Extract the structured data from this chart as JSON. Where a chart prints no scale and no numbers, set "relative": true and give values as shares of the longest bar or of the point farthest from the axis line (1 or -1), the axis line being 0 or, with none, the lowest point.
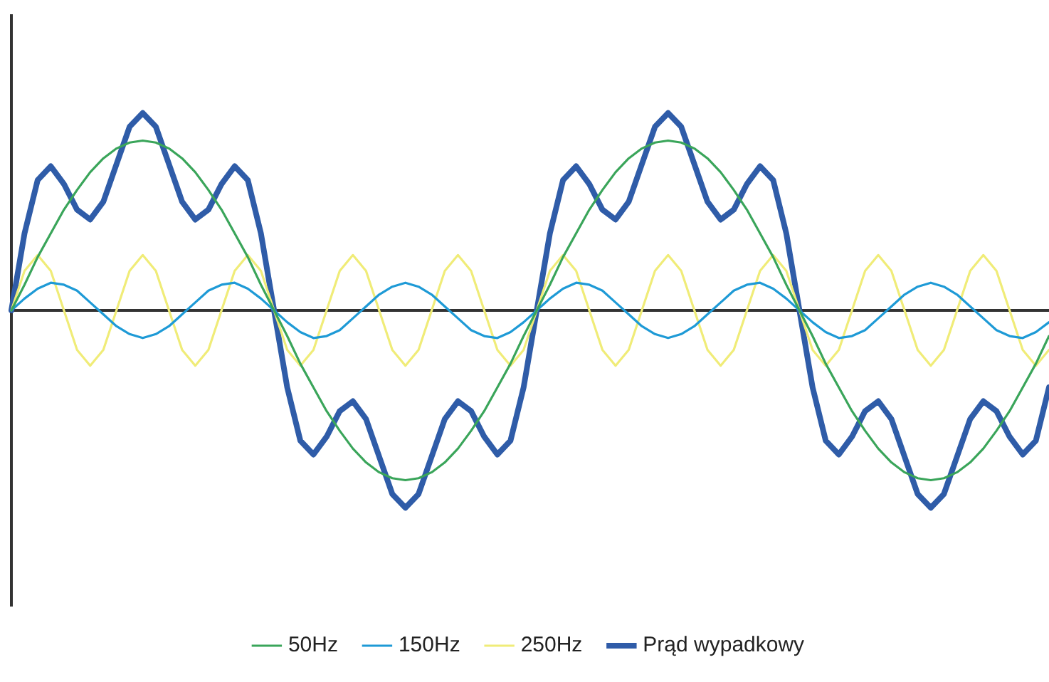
{
  "chart_data": {
    "type": "line",
    "relative": true,
    "legend": "bottom",
    "marker": "none",
    "line_style": "solid",
    "categories": [
      null,
      null,
      null,
      null,
      null,
      null,
      null,
      null,
      null,
      null,
      null,
      null,
      null,
      null,
      null,
      null,
      null,
      null,
      null,
      null,
      null,
      null,
      null,
      null,
      null,
      null,
      null,
      null,
      null,
      null,
      null,
      null,
      null,
      null,
      null,
      null,
      null,
      null,
      null,
      null,
      null,
      null,
      null,
      null,
      null,
      null,
      null,
      null,
      null,
      null,
      null,
      null,
      null,
      null,
      null,
      null,
      null,
      null,
      null,
      null,
      null,
      null,
      null,
      null,
      null,
      null,
      null,
      null,
      null,
      null,
      null,
      null,
      null,
      null,
      null,
      null,
      null,
      null,
      null,
      null
    ],
    "series": [
      {
        "name": "50Hz",
        "color": "#3aa55a",
        "values": [
          0,
          0.13,
          0.27,
          0.39,
          0.51,
          0.61,
          0.7,
          0.77,
          0.82,
          0.85,
          0.86,
          0.85,
          0.82,
          0.77,
          0.7,
          0.61,
          0.51,
          0.39,
          0.27,
          0.13,
          0,
          -0.13,
          -0.27,
          -0.39,
          -0.51,
          -0.61,
          -0.7,
          -0.77,
          -0.82,
          -0.85,
          -0.86,
          -0.85,
          -0.82,
          -0.77,
          -0.7,
          -0.61,
          -0.51,
          -0.39,
          -0.27,
          -0.13,
          0,
          0.13,
          0.27,
          0.39,
          0.51,
          0.61,
          0.7,
          0.77,
          0.82,
          0.85,
          0.86,
          0.85,
          0.82,
          0.77,
          0.7,
          0.61,
          0.51,
          0.39,
          0.27,
          0.13,
          0,
          -0.13,
          -0.27,
          -0.39,
          -0.51,
          -0.61,
          -0.7,
          -0.77,
          -0.82,
          -0.85,
          -0.86,
          -0.85,
          -0.82,
          -0.77,
          -0.7,
          -0.61,
          -0.51,
          -0.39,
          -0.27,
          -0.13
        ]
      },
      {
        "name": "150Hz",
        "color": "#1e9ad6",
        "values": [
          0,
          0.06,
          0.11,
          0.14,
          0.13,
          0.1,
          0.04,
          -0.02,
          -0.08,
          -0.12,
          -0.14,
          -0.12,
          -0.08,
          -0.02,
          0.04,
          0.1,
          0.13,
          0.14,
          0.11,
          0.06,
          0,
          -0.06,
          -0.11,
          -0.14,
          -0.13,
          -0.1,
          -0.04,
          0.02,
          0.08,
          0.12,
          0.14,
          0.12,
          0.08,
          0.02,
          -0.04,
          -0.1,
          -0.13,
          -0.14,
          -0.11,
          -0.06,
          0,
          0.06,
          0.11,
          0.14,
          0.13,
          0.1,
          0.04,
          -0.02,
          -0.08,
          -0.12,
          -0.14,
          -0.12,
          -0.08,
          -0.02,
          0.04,
          0.1,
          0.13,
          0.14,
          0.11,
          0.06,
          0,
          -0.06,
          -0.11,
          -0.14,
          -0.13,
          -0.1,
          -0.04,
          0.02,
          0.08,
          0.12,
          0.14,
          0.12,
          0.08,
          0.02,
          -0.04,
          -0.1,
          -0.13,
          -0.14,
          -0.11,
          -0.06
        ]
      },
      {
        "name": "250Hz",
        "color": "#f0ec78",
        "values": [
          0,
          0.2,
          0.28,
          0.2,
          0,
          -0.2,
          -0.28,
          -0.2,
          0,
          0.2,
          0.28,
          0.2,
          0,
          -0.2,
          -0.28,
          -0.2,
          0,
          0.2,
          0.28,
          0.2,
          0,
          -0.2,
          -0.28,
          -0.2,
          0,
          0.2,
          0.28,
          0.2,
          0,
          -0.2,
          -0.28,
          -0.2,
          0,
          0.2,
          0.28,
          0.2,
          0,
          -0.2,
          -0.28,
          -0.2,
          0,
          0.2,
          0.28,
          0.2,
          0,
          -0.2,
          -0.28,
          -0.2,
          0,
          0.2,
          0.28,
          0.2,
          0,
          -0.2,
          -0.28,
          -0.2,
          0,
          0.2,
          0.28,
          0.2,
          0,
          -0.2,
          -0.28,
          -0.2,
          0,
          0.2,
          0.28,
          0.2,
          0,
          -0.2,
          -0.28,
          -0.2,
          0,
          0.2,
          0.28,
          0.2,
          0,
          -0.2,
          -0.28,
          -0.2
        ]
      },
      {
        "name": "Prąd wypadkowy",
        "color": "#2f5ca8",
        "values": [
          0,
          0.39,
          0.66,
          0.73,
          0.64,
          0.51,
          0.46,
          0.55,
          0.74,
          0.93,
          1,
          0.93,
          0.74,
          0.55,
          0.46,
          0.51,
          0.64,
          0.73,
          0.66,
          0.39,
          0,
          -0.39,
          -0.66,
          -0.73,
          -0.64,
          -0.51,
          -0.46,
          -0.55,
          -0.74,
          -0.93,
          -1,
          -0.93,
          -0.74,
          -0.55,
          -0.46,
          -0.51,
          -0.64,
          -0.73,
          -0.66,
          -0.39,
          0,
          0.39,
          0.66,
          0.73,
          0.64,
          0.51,
          0.46,
          0.55,
          0.74,
          0.93,
          1,
          0.93,
          0.74,
          0.55,
          0.46,
          0.51,
          0.64,
          0.73,
          0.66,
          0.39,
          0,
          -0.39,
          -0.66,
          -0.73,
          -0.64,
          -0.51,
          -0.46,
          -0.55,
          -0.74,
          -0.93,
          -1,
          -0.93,
          -0.74,
          -0.55,
          -0.46,
          -0.51,
          -0.64,
          -0.73,
          -0.66,
          -0.39
        ]
      }
    ]
  }
}
